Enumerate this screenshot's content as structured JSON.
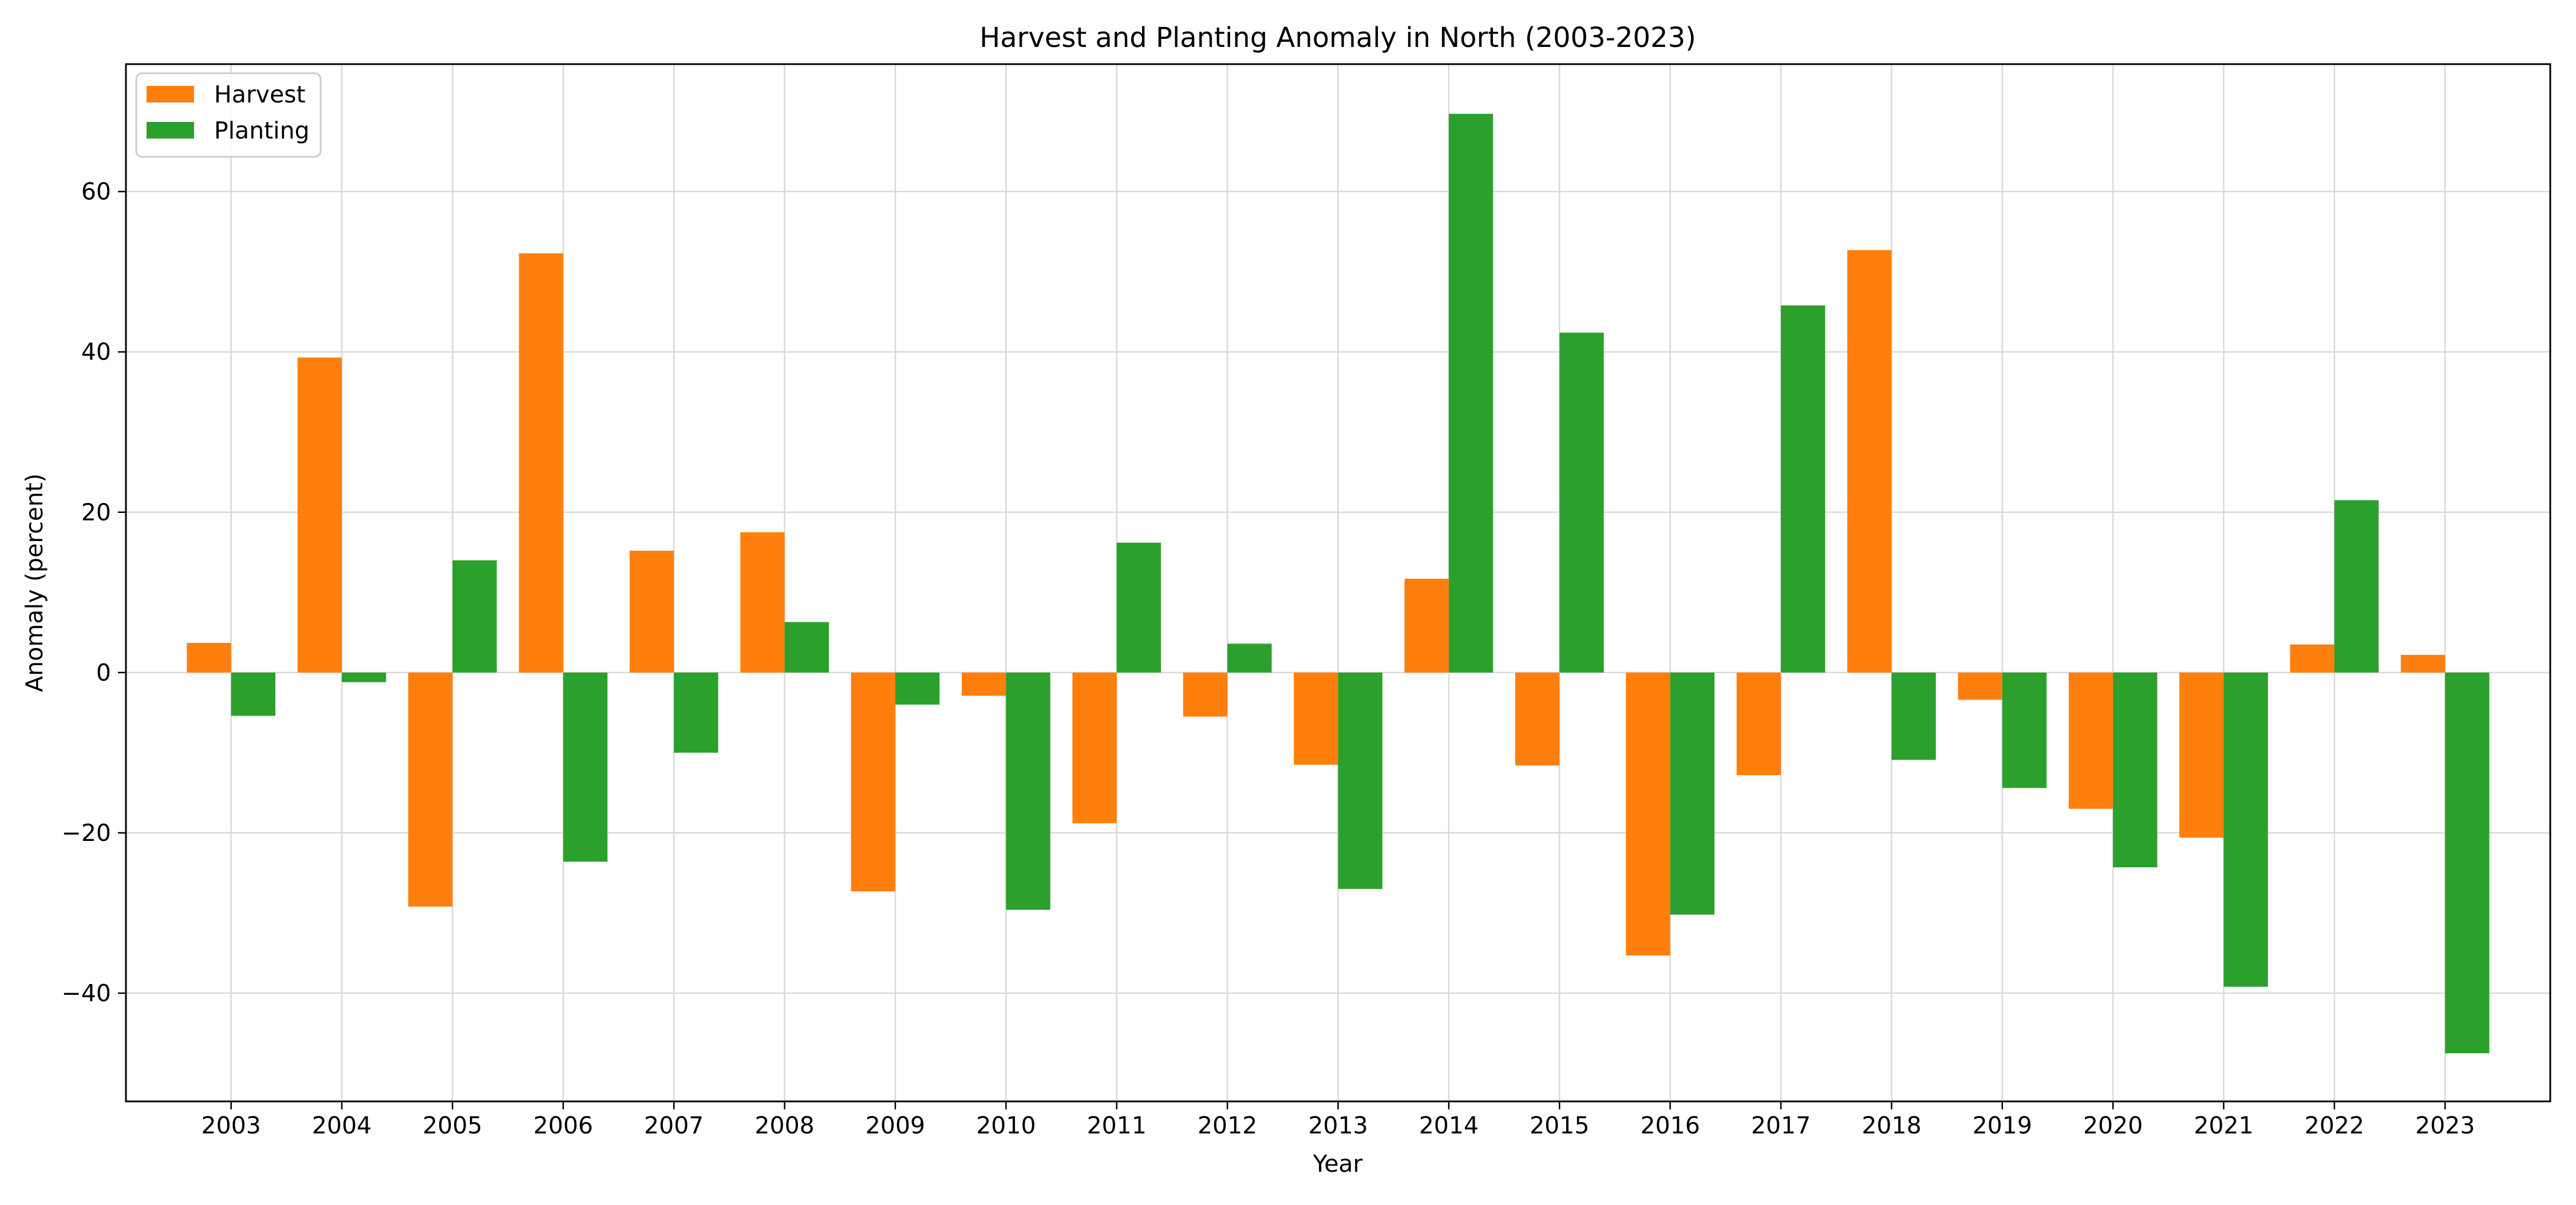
{
  "chart_data": {
    "type": "bar",
    "title": "Harvest and Planting Anomaly in North (2003-2023)",
    "xlabel": "Year",
    "ylabel": "Anomaly (percent)",
    "categories": [
      "2003",
      "2004",
      "2005",
      "2006",
      "2007",
      "2008",
      "2009",
      "2010",
      "2011",
      "2012",
      "2013",
      "2014",
      "2015",
      "2016",
      "2017",
      "2018",
      "2019",
      "2020",
      "2021",
      "2022",
      "2023"
    ],
    "series": [
      {
        "name": "Harvest",
        "color": "#ff7f0e",
        "values": [
          3.7,
          39.3,
          -29.2,
          52.3,
          15.2,
          17.5,
          -27.3,
          -2.9,
          -18.8,
          -5.5,
          -11.5,
          11.7,
          -11.6,
          -35.3,
          -12.8,
          52.7,
          -3.4,
          -17.0,
          -20.6,
          3.5,
          2.2
        ]
      },
      {
        "name": "Planting",
        "color": "#2ca02c",
        "values": [
          -5.4,
          -1.2,
          14.0,
          -23.6,
          -10.0,
          6.3,
          -4.0,
          -29.6,
          16.2,
          3.6,
          -27.0,
          69.7,
          42.4,
          -30.2,
          45.8,
          -10.9,
          -14.4,
          -24.3,
          -39.2,
          21.5,
          -47.5
        ]
      }
    ],
    "ylim": [
      -53.5,
      75.9
    ],
    "yticks": [
      -40,
      -20,
      0,
      20,
      40,
      60
    ],
    "ytick_labels": [
      "−40",
      "−20",
      "0",
      "20",
      "40",
      "60"
    ],
    "grid": true,
    "legend_position": "upper-left"
  }
}
